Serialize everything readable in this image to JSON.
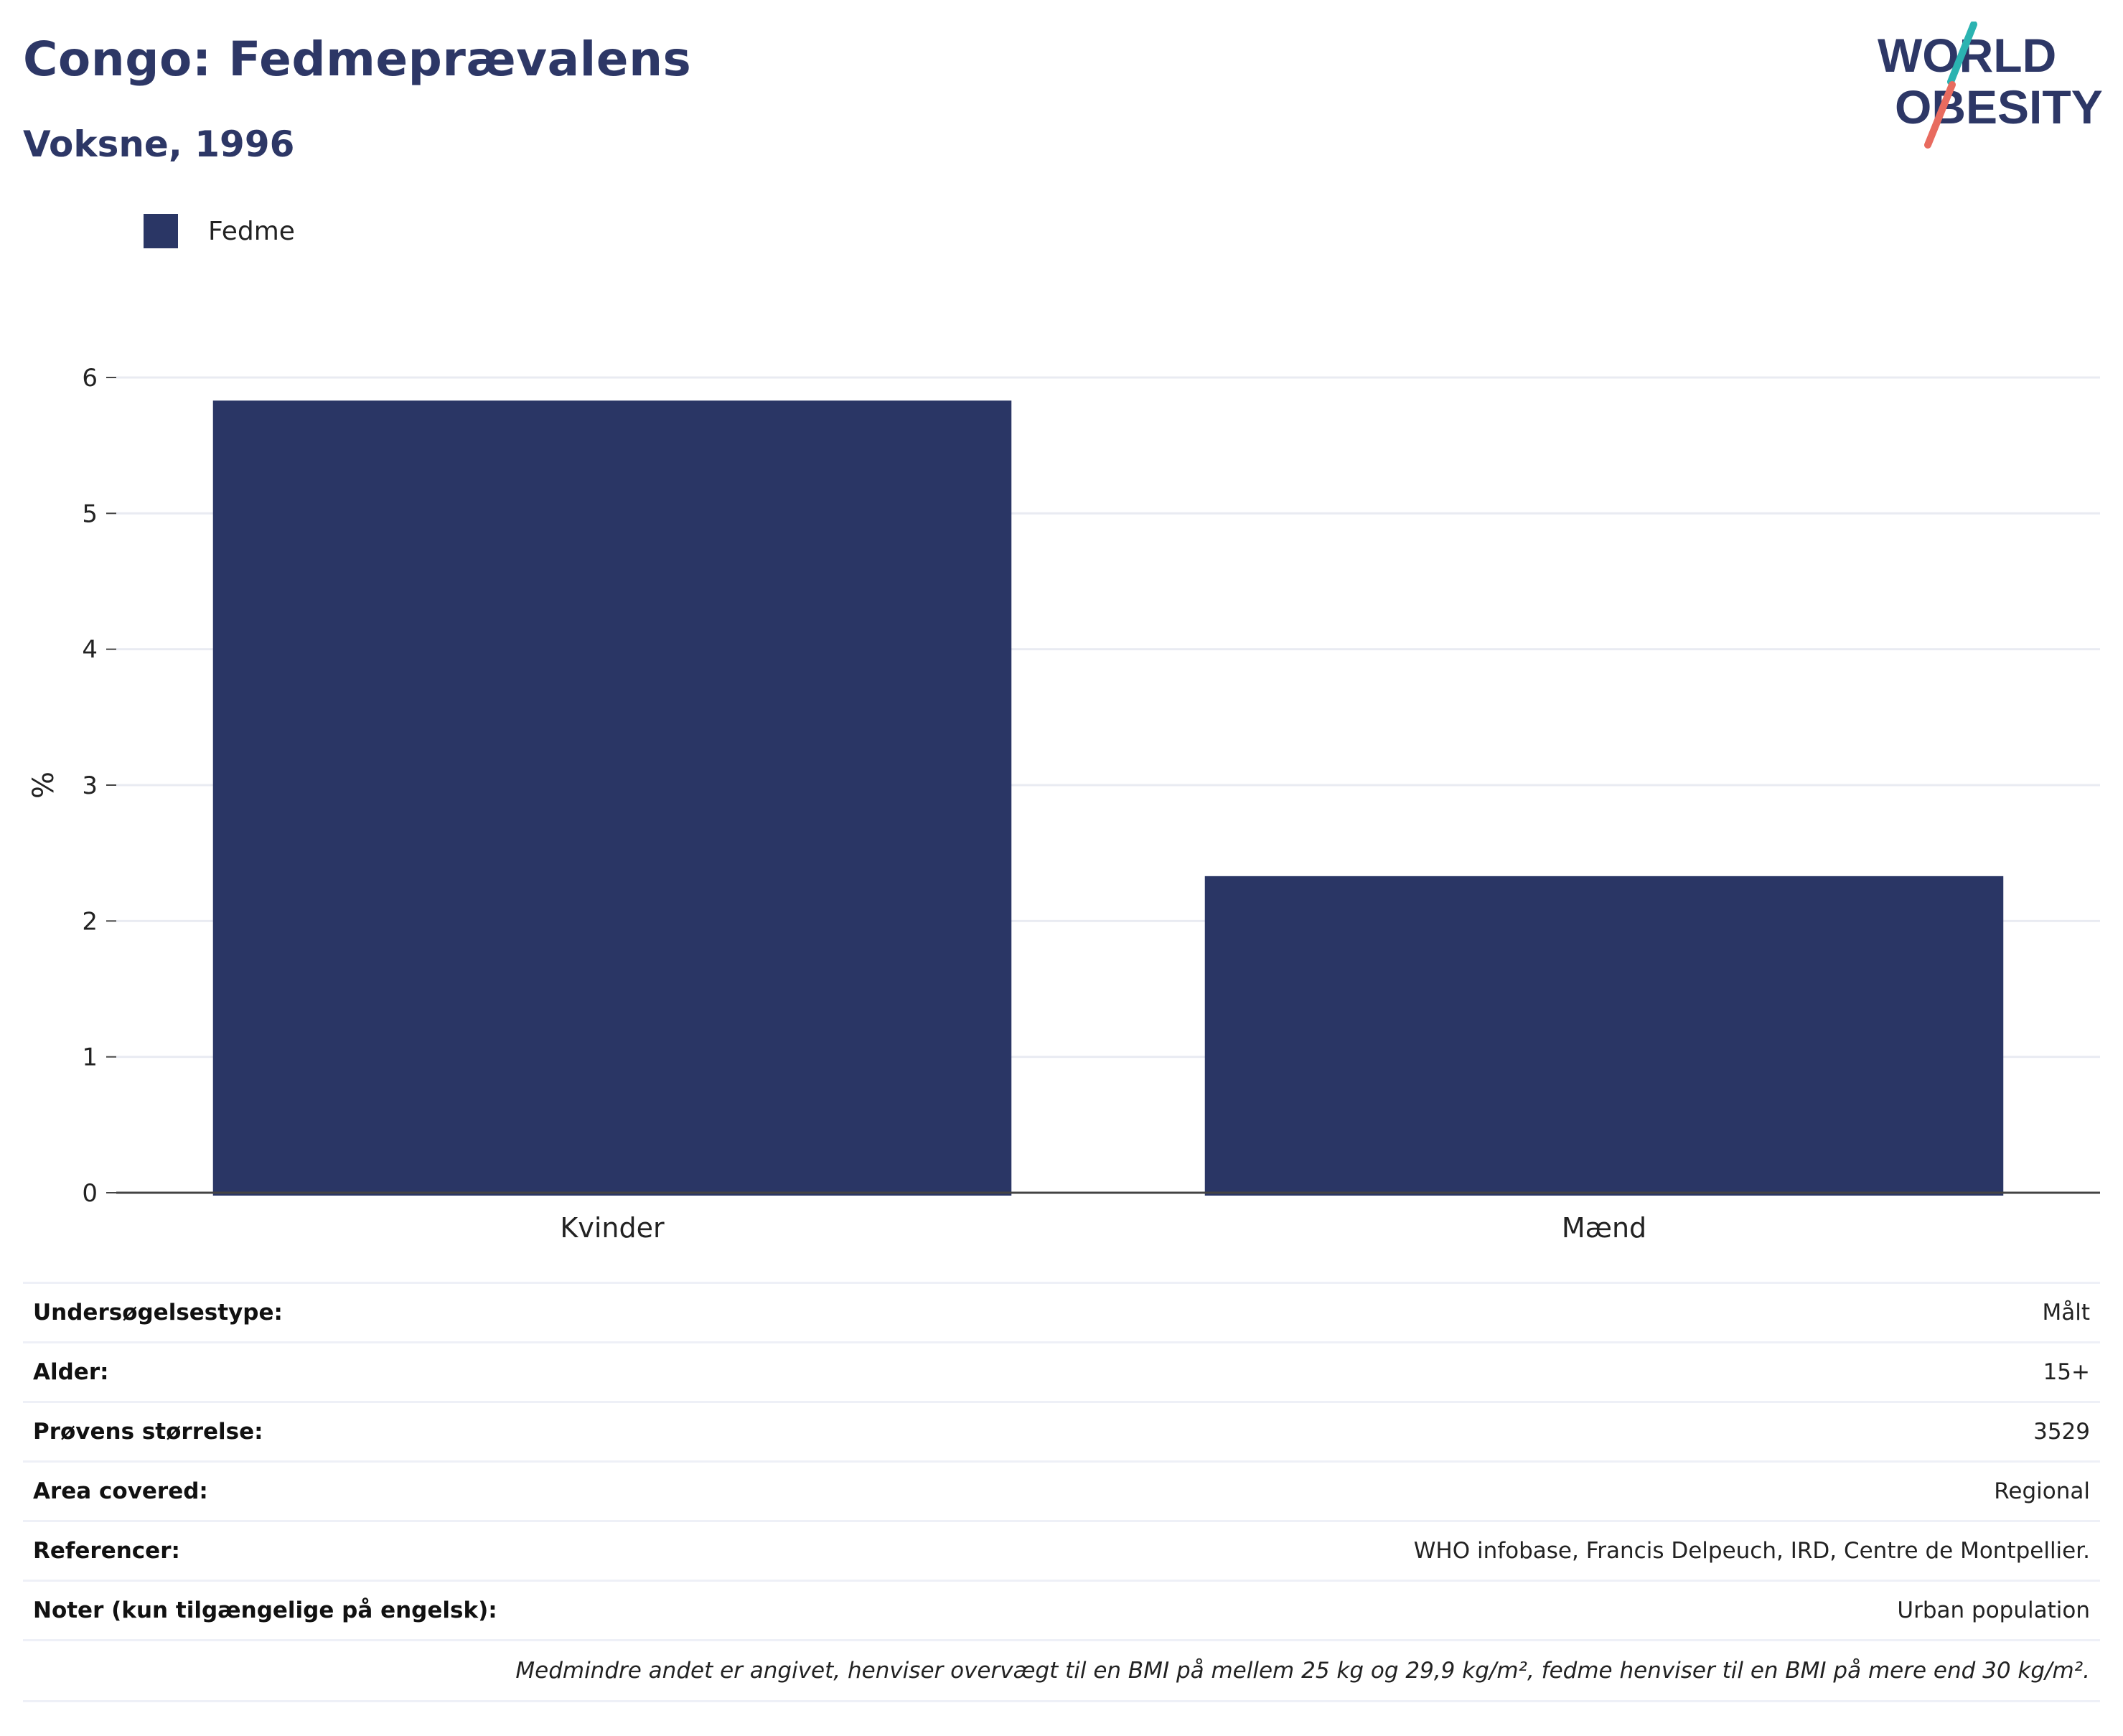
{
  "header": {
    "title": "Congo: Fedmeprævalens",
    "subtitle": "Voksne, 1996"
  },
  "logo": {
    "line1": "WORLD",
    "line2": "OBESITY",
    "colors": {
      "text": "#2d3766",
      "teal": "#2bb3b1",
      "coral": "#e86b5f"
    }
  },
  "legend": {
    "label": "Fedme",
    "color": "#2a3665"
  },
  "chart_data": {
    "type": "bar",
    "categories": [
      "Kvinder",
      "Mænd"
    ],
    "series": [
      {
        "name": "Fedme",
        "values": [
          5.83,
          2.33
        ],
        "color": "#2a3665"
      }
    ],
    "xlabel": "",
    "ylabel": "%",
    "ylim": [
      0,
      6
    ],
    "yticks": [
      0,
      1,
      2,
      3,
      4,
      5,
      6
    ],
    "grid": true
  },
  "details": [
    {
      "key": "Undersøgelsestype:",
      "value": "Målt"
    },
    {
      "key": "Alder:",
      "value": "15+"
    },
    {
      "key": "Prøvens størrelse:",
      "value": "3529"
    },
    {
      "key": "Area covered:",
      "value": "Regional"
    },
    {
      "key": "Referencer:",
      "value": "WHO infobase, Francis Delpeuch, IRD, Centre de Montpellier."
    },
    {
      "key": "Noter (kun tilgængelige på engelsk):",
      "value": "Urban population"
    }
  ],
  "footnote": "Medmindre andet er angivet, henviser overvægt til en BMI på mellem 25 kg og 29,9 kg/m², fedme henviser til en BMI på mere end 30 kg/m²."
}
